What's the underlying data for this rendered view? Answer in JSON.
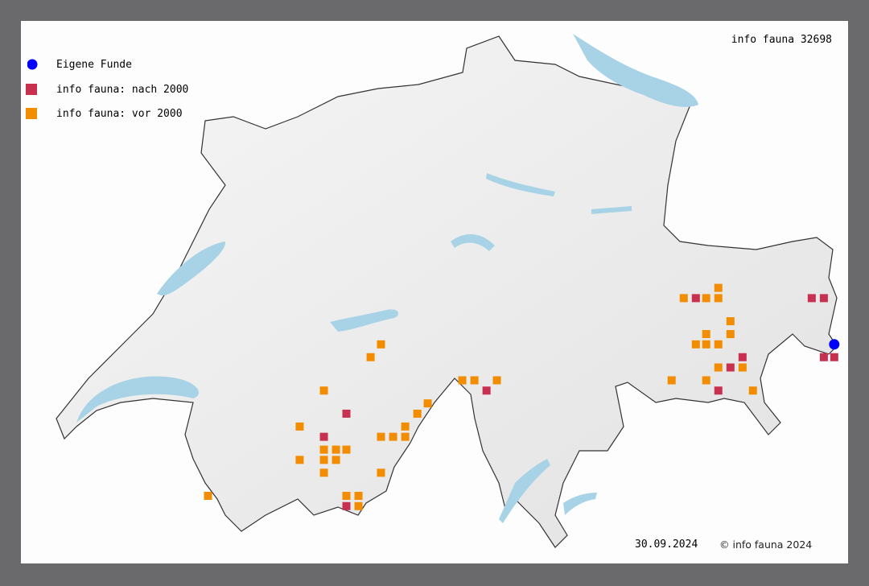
{
  "title": "info fauna 32698",
  "legend": [
    {
      "label": "Eigene Funde",
      "symbol": "circle",
      "color": "#0000ff"
    },
    {
      "label": "info fauna: nach 2000",
      "symbol": "square",
      "color": "#c8304f"
    },
    {
      "label": "info fauna: vor 2000",
      "symbol": "square",
      "color": "#f28c00"
    }
  ],
  "footer": {
    "date": "30.09.2024",
    "copyright": "© info fauna 2024"
  },
  "colors": {
    "land": "#eeeeee",
    "border": "#333333",
    "water": "#a8d3e6",
    "frame": "#6a696b"
  },
  "records": {
    "eigene_funde": [
      [
        10.48,
        46.61
      ]
    ],
    "nach_2000": [
      [
        7.66,
        46.34
      ],
      [
        7.53,
        46.25
      ],
      [
        7.66,
        45.98
      ],
      [
        8.47,
        46.43
      ],
      [
        9.68,
        46.79
      ],
      [
        9.95,
        46.56
      ],
      [
        9.88,
        46.52
      ],
      [
        9.81,
        46.43
      ],
      [
        10.35,
        46.79
      ],
      [
        10.42,
        46.79
      ],
      [
        10.42,
        46.56
      ],
      [
        10.48,
        46.56
      ]
    ],
    "vor_2000": [
      [
        7.86,
        46.61
      ],
      [
        7.8,
        46.56
      ],
      [
        7.53,
        46.43
      ],
      [
        7.39,
        46.29
      ],
      [
        8.13,
        46.38
      ],
      [
        8.07,
        46.34
      ],
      [
        8.0,
        46.29
      ],
      [
        7.86,
        46.25
      ],
      [
        7.93,
        46.25
      ],
      [
        8.0,
        46.25
      ],
      [
        7.53,
        46.2
      ],
      [
        7.6,
        46.2
      ],
      [
        7.66,
        46.2
      ],
      [
        7.39,
        46.16
      ],
      [
        7.53,
        46.16
      ],
      [
        7.6,
        46.16
      ],
      [
        7.53,
        46.11
      ],
      [
        7.86,
        46.11
      ],
      [
        7.66,
        46.02
      ],
      [
        7.73,
        46.02
      ],
      [
        7.73,
        45.98
      ],
      [
        6.86,
        46.02
      ],
      [
        8.33,
        46.47
      ],
      [
        8.4,
        46.47
      ],
      [
        8.53,
        46.47
      ],
      [
        9.81,
        46.83
      ],
      [
        9.61,
        46.79
      ],
      [
        9.74,
        46.79
      ],
      [
        9.81,
        46.79
      ],
      [
        9.88,
        46.7
      ],
      [
        9.74,
        46.65
      ],
      [
        9.88,
        46.65
      ],
      [
        9.68,
        46.61
      ],
      [
        9.74,
        46.61
      ],
      [
        9.81,
        46.61
      ],
      [
        9.81,
        46.52
      ],
      [
        9.95,
        46.52
      ],
      [
        9.54,
        46.47
      ],
      [
        9.74,
        46.47
      ],
      [
        10.01,
        46.43
      ]
    ]
  }
}
